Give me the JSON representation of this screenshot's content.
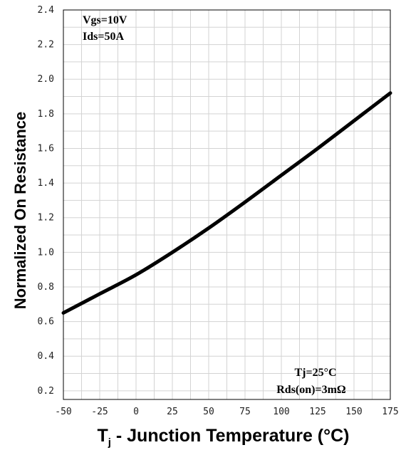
{
  "chart_data": {
    "type": "line",
    "title": "",
    "xlabel": "T",
    "xlabel_sub": "j",
    "xlabel_rest": " - Junction Temperature (°C)",
    "ylabel": "Normalized On Resistance",
    "xlim": [
      -50,
      175
    ],
    "ylim": [
      0.15,
      2.4
    ],
    "x_ticks": [
      "-50",
      "-25",
      "0",
      "25",
      "50",
      "75",
      "100",
      "125",
      "150",
      "175"
    ],
    "y_ticks": [
      "0.2",
      "0.4",
      "0.6",
      "0.8",
      "1.0",
      "1.2",
      "1.4",
      "1.6",
      "1.8",
      "2.0",
      "2.2",
      "2.4"
    ],
    "grid": true,
    "annotations_top_left": [
      "Vgs=10V",
      "Ids=50A"
    ],
    "annotations_bottom_right": [
      "Tj=25°C",
      "Rds(on)=3mΩ"
    ],
    "series": [
      {
        "color": "#000000",
        "x": [
          -50,
          -25,
          0,
          25,
          50,
          75,
          100,
          125,
          150,
          175
        ],
        "y": [
          0.65,
          0.76,
          0.87,
          1.0,
          1.14,
          1.29,
          1.445,
          1.6,
          1.76,
          1.92
        ]
      }
    ]
  }
}
